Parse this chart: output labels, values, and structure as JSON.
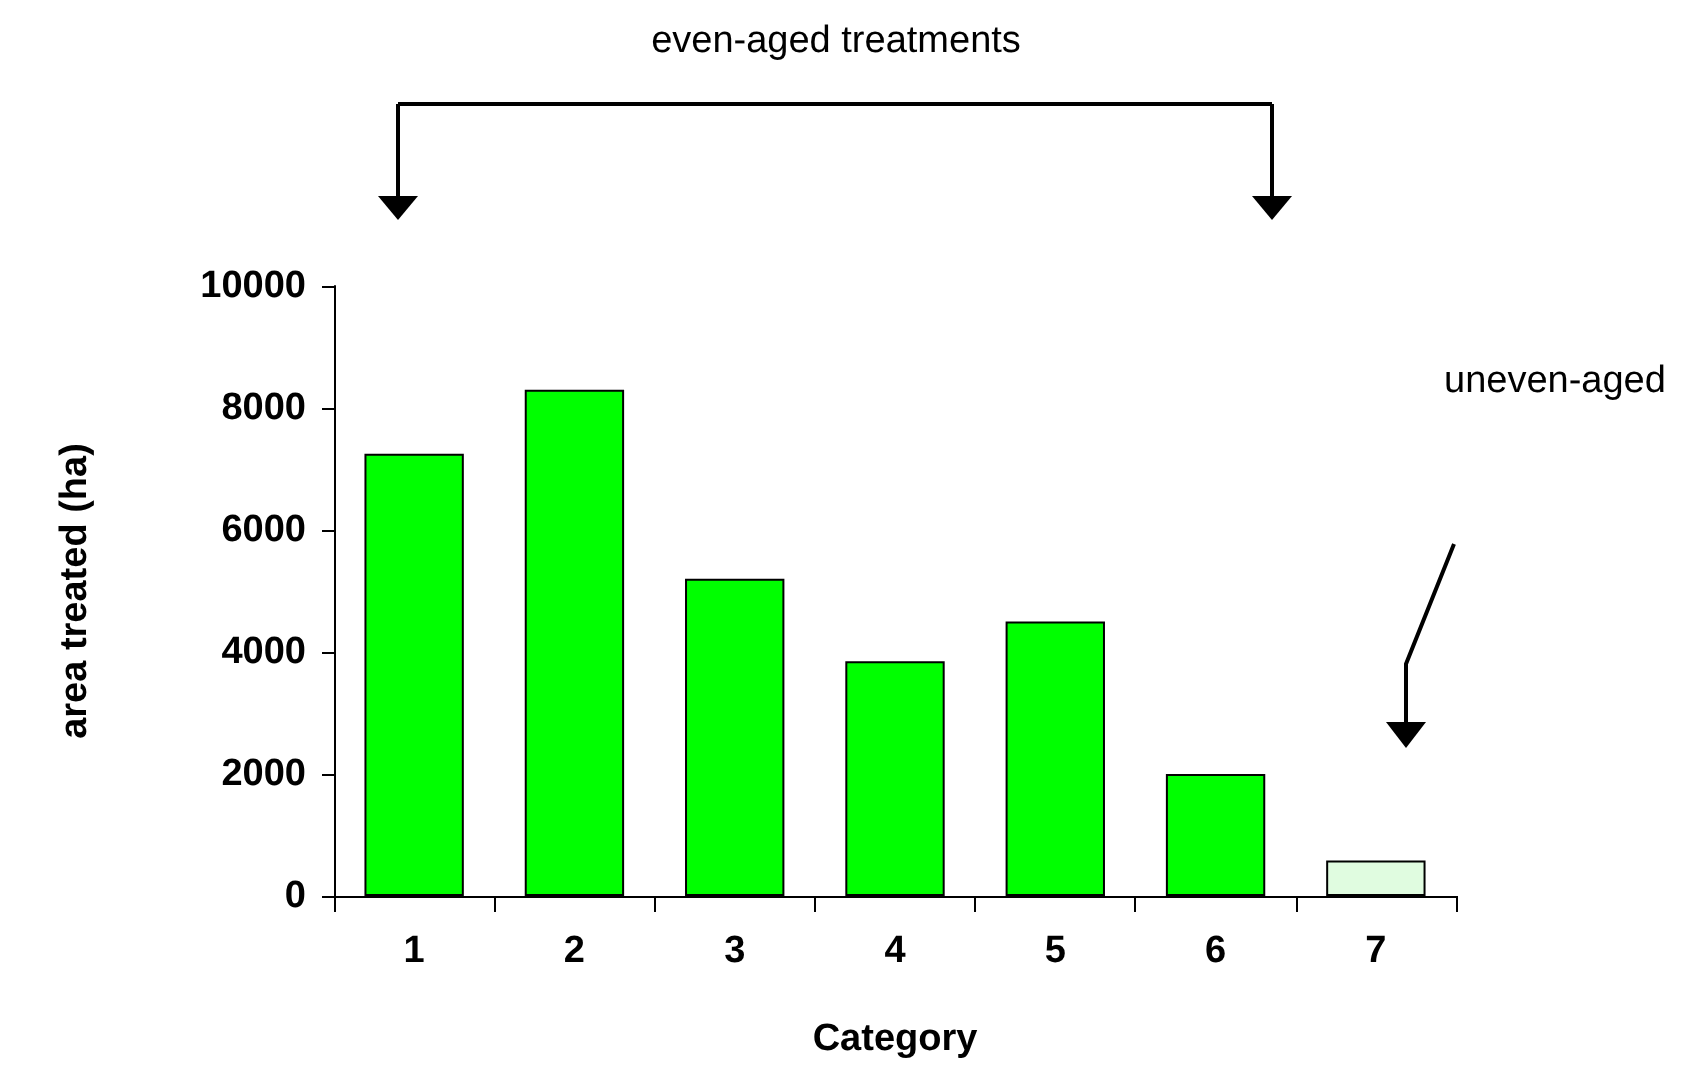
{
  "chart_data": {
    "type": "bar",
    "xlabel": "Category",
    "ylabel": "area treated (ha)",
    "categories": [
      "1",
      "2",
      "3",
      "4",
      "5",
      "6",
      "7"
    ],
    "values": [
      7250,
      8300,
      5200,
      3850,
      4500,
      2000,
      580
    ],
    "colors": [
      "#00ff00",
      "#00ff00",
      "#00ff00",
      "#00ff00",
      "#00ff00",
      "#00ff00",
      "#e0fce0"
    ],
    "ylim": [
      0,
      10000
    ],
    "yticks": [
      0,
      2000,
      4000,
      6000,
      8000,
      10000
    ],
    "grid": false,
    "annotations": [
      "even-aged treatments",
      "uneven-aged"
    ]
  }
}
